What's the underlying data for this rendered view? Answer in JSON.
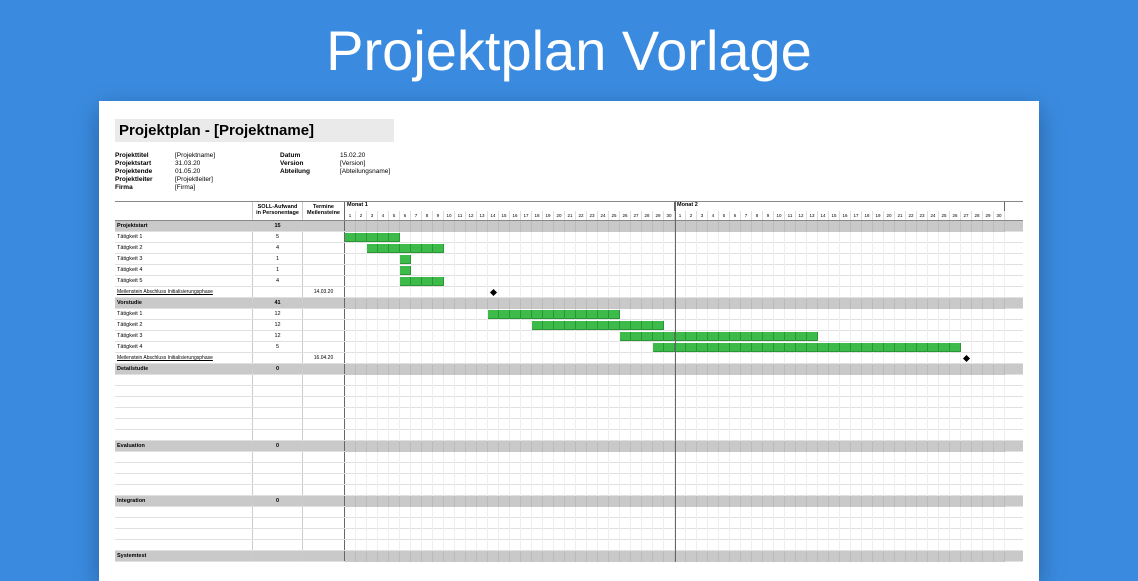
{
  "banner": {
    "title": "Projektplan Vorlage"
  },
  "doc": {
    "title": "Projektplan - [Projektname]",
    "meta_left": [
      {
        "label": "Projekttitel",
        "value": "[Projektname]"
      },
      {
        "label": "Projektstart",
        "value": "31.03.20"
      },
      {
        "label": "Projektende",
        "value": "01.05.20"
      },
      {
        "label": "Projektleiter",
        "value": "[Projektleiter]"
      },
      {
        "label": "Firma",
        "value": "[Firma]"
      }
    ],
    "meta_right": [
      {
        "label": "Datum",
        "value": "15.02.20"
      },
      {
        "label": "Version",
        "value": "[Version]"
      },
      {
        "label": "Abteilung",
        "value": "[Abteilungsname]"
      }
    ]
  },
  "gantt": {
    "col_effort_label": "SOLL-Aufwand in Personentage",
    "col_milestone_label": "Termine Meilensteine",
    "months": [
      {
        "name": "Monat 1",
        "days": 30
      },
      {
        "name": "Monat 2",
        "days": 30
      }
    ],
    "day_width": 11,
    "bar_color": "#3dbb4a",
    "bar_border": "#2a9636",
    "section_bg": "#c9c9c9",
    "grid_line": "#eee",
    "rows": [
      {
        "type": "section",
        "label": "Projektstart",
        "effort": "15"
      },
      {
        "type": "task",
        "label": "Tätigkeit 1",
        "effort": "5",
        "bar_start": 0,
        "bar_len": 5
      },
      {
        "type": "task",
        "label": "Tätigkeit 2",
        "effort": "4",
        "bar_start": 2,
        "bar_len": 7
      },
      {
        "type": "task",
        "label": "Tätigkeit 3",
        "effort": "1",
        "bar_start": 5,
        "bar_len": 1
      },
      {
        "type": "task",
        "label": "Tätigkeit 4",
        "effort": "1",
        "bar_start": 5,
        "bar_len": 1
      },
      {
        "type": "task",
        "label": "Tätigkeit 5",
        "effort": "4",
        "bar_start": 5,
        "bar_len": 4
      },
      {
        "type": "milestone",
        "label": "Meilenstein Abschluss Initialisierungsphase",
        "milestone": "14.03.20",
        "diamond_at": 13
      },
      {
        "type": "section",
        "label": "Vorstudie",
        "effort": "41"
      },
      {
        "type": "task",
        "label": "Tätigkeit 1",
        "effort": "12",
        "bar_start": 13,
        "bar_len": 12
      },
      {
        "type": "task",
        "label": "Tätigkeit 2",
        "effort": "12",
        "bar_start": 17,
        "bar_len": 12
      },
      {
        "type": "task",
        "label": "Tätigkeit 3",
        "effort": "12",
        "bar_start": 25,
        "bar_len": 18
      },
      {
        "type": "task",
        "label": "Tätigkeit 4",
        "effort": "5",
        "bar_start": 28,
        "bar_len": 28
      },
      {
        "type": "milestone",
        "label": "Meilenstein Abschluss Initialisierungsphase",
        "milestone": "16.04.20",
        "diamond_at": 56
      },
      {
        "type": "section",
        "label": "Detailstudie",
        "effort": "0"
      },
      {
        "type": "task",
        "label": ""
      },
      {
        "type": "task",
        "label": ""
      },
      {
        "type": "task",
        "label": ""
      },
      {
        "type": "task",
        "label": ""
      },
      {
        "type": "task",
        "label": ""
      },
      {
        "type": "task",
        "label": ""
      },
      {
        "type": "section",
        "label": "Evaluation",
        "effort": "0"
      },
      {
        "type": "task",
        "label": ""
      },
      {
        "type": "task",
        "label": ""
      },
      {
        "type": "task",
        "label": ""
      },
      {
        "type": "task",
        "label": ""
      },
      {
        "type": "section",
        "label": "Integration",
        "effort": "0"
      },
      {
        "type": "task",
        "label": ""
      },
      {
        "type": "task",
        "label": ""
      },
      {
        "type": "task",
        "label": ""
      },
      {
        "type": "task",
        "label": ""
      },
      {
        "type": "section",
        "label": "Systemtest",
        "effort": ""
      }
    ]
  }
}
